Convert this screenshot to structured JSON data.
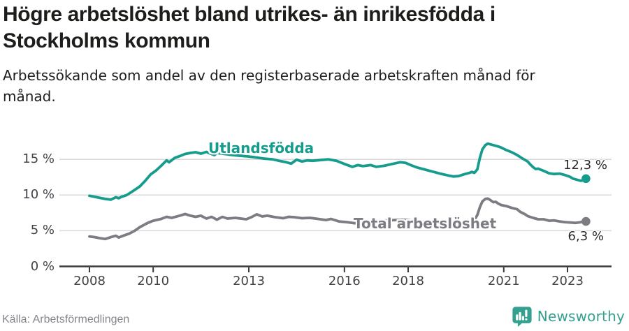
{
  "header": {
    "title_lines": [
      "Högre arbetslöshet bland utrikes- än inrikesfödda i",
      "Stockholms kommun"
    ],
    "subtitle_lines": [
      "Arbetssökande som andel av den registerbaserade arbetskraften månad för",
      "månad."
    ]
  },
  "chart_data": {
    "type": "line",
    "title": "Högre arbetslöshet bland utrikes- än inrikesfödda i Stockholms kommun",
    "subtitle": "Arbetssökande som andel av den registerbaserade arbetskraften månad för månad.",
    "xlabel": "",
    "ylabel": "",
    "unit": "%",
    "grid": true,
    "legend_position": "inline-labels",
    "x_range": [
      2008.0,
      2023.58
    ],
    "ylim": [
      0,
      18
    ],
    "grid_color": "#d9d9d9",
    "axis_color": "#3a3a3a",
    "y_ticks": [
      {
        "value": 0,
        "label": "0 %"
      },
      {
        "value": 5,
        "label": "5 %"
      },
      {
        "value": 10,
        "label": "10 %"
      },
      {
        "value": 15,
        "label": "15 %"
      }
    ],
    "x_ticks": [
      {
        "value": 2008,
        "label": "2008"
      },
      {
        "value": 2010,
        "label": "2010"
      },
      {
        "value": 2013,
        "label": "2013"
      },
      {
        "value": 2016,
        "label": "2016"
      },
      {
        "value": 2018,
        "label": "2018"
      },
      {
        "value": 2021,
        "label": "2021"
      },
      {
        "value": 2023,
        "label": "2023"
      }
    ],
    "series": [
      {
        "name": "Utlandsfödda",
        "color": "#169c8d",
        "end_label": "12,3 %",
        "end_value": 12.3,
        "points": [
          [
            2008.0,
            9.9
          ],
          [
            2008.17,
            9.75
          ],
          [
            2008.33,
            9.6
          ],
          [
            2008.5,
            9.45
          ],
          [
            2008.67,
            9.35
          ],
          [
            2008.83,
            9.7
          ],
          [
            2008.92,
            9.55
          ],
          [
            2009.0,
            9.75
          ],
          [
            2009.17,
            10.0
          ],
          [
            2009.33,
            10.45
          ],
          [
            2009.58,
            11.2
          ],
          [
            2009.75,
            12.0
          ],
          [
            2009.92,
            12.9
          ],
          [
            2010.08,
            13.4
          ],
          [
            2010.25,
            14.1
          ],
          [
            2010.42,
            14.85
          ],
          [
            2010.5,
            14.6
          ],
          [
            2010.67,
            15.2
          ],
          [
            2010.83,
            15.45
          ],
          [
            2011.0,
            15.75
          ],
          [
            2011.17,
            15.9
          ],
          [
            2011.33,
            16.0
          ],
          [
            2011.5,
            15.8
          ],
          [
            2011.67,
            16.05
          ],
          [
            2011.83,
            15.75
          ],
          [
            2011.92,
            15.6
          ],
          [
            2012.0,
            15.9
          ],
          [
            2012.25,
            15.75
          ],
          [
            2012.5,
            15.6
          ],
          [
            2012.75,
            15.5
          ],
          [
            2013.0,
            15.4
          ],
          [
            2013.25,
            15.25
          ],
          [
            2013.5,
            15.1
          ],
          [
            2013.75,
            15.0
          ],
          [
            2014.0,
            14.75
          ],
          [
            2014.17,
            14.6
          ],
          [
            2014.33,
            14.4
          ],
          [
            2014.5,
            14.95
          ],
          [
            2014.67,
            14.7
          ],
          [
            2014.83,
            14.85
          ],
          [
            2015.0,
            14.8
          ],
          [
            2015.25,
            14.9
          ],
          [
            2015.5,
            15.0
          ],
          [
            2015.75,
            14.8
          ],
          [
            2016.0,
            14.35
          ],
          [
            2016.25,
            13.95
          ],
          [
            2016.42,
            14.2
          ],
          [
            2016.58,
            14.05
          ],
          [
            2016.83,
            14.2
          ],
          [
            2017.0,
            13.95
          ],
          [
            2017.25,
            14.1
          ],
          [
            2017.5,
            14.35
          ],
          [
            2017.75,
            14.6
          ],
          [
            2017.92,
            14.5
          ],
          [
            2018.08,
            14.2
          ],
          [
            2018.25,
            13.9
          ],
          [
            2018.5,
            13.6
          ],
          [
            2018.75,
            13.3
          ],
          [
            2019.0,
            13.0
          ],
          [
            2019.25,
            12.75
          ],
          [
            2019.42,
            12.6
          ],
          [
            2019.58,
            12.65
          ],
          [
            2019.75,
            12.9
          ],
          [
            2019.92,
            13.1
          ],
          [
            2020.0,
            13.25
          ],
          [
            2020.08,
            13.1
          ],
          [
            2020.17,
            13.6
          ],
          [
            2020.25,
            15.2
          ],
          [
            2020.33,
            16.4
          ],
          [
            2020.42,
            17.0
          ],
          [
            2020.5,
            17.2
          ],
          [
            2020.58,
            17.1
          ],
          [
            2020.67,
            17.0
          ],
          [
            2020.75,
            16.9
          ],
          [
            2020.83,
            16.8
          ],
          [
            2020.92,
            16.65
          ],
          [
            2021.08,
            16.3
          ],
          [
            2021.25,
            16.0
          ],
          [
            2021.42,
            15.6
          ],
          [
            2021.58,
            15.15
          ],
          [
            2021.75,
            14.7
          ],
          [
            2021.83,
            14.3
          ],
          [
            2021.92,
            13.9
          ],
          [
            2022.0,
            13.65
          ],
          [
            2022.08,
            13.7
          ],
          [
            2022.25,
            13.4
          ],
          [
            2022.42,
            13.05
          ],
          [
            2022.58,
            12.95
          ],
          [
            2022.75,
            13.0
          ],
          [
            2022.92,
            12.8
          ],
          [
            2023.08,
            12.55
          ],
          [
            2023.17,
            12.3
          ],
          [
            2023.33,
            12.1
          ],
          [
            2023.42,
            12.0
          ],
          [
            2023.5,
            12.1
          ],
          [
            2023.58,
            12.3
          ]
        ]
      },
      {
        "name": "Total arbetslöshet",
        "color": "#7c7c82",
        "end_label": "6,3 %",
        "end_value": 6.3,
        "points": [
          [
            2008.0,
            4.2
          ],
          [
            2008.17,
            4.1
          ],
          [
            2008.33,
            3.95
          ],
          [
            2008.5,
            3.85
          ],
          [
            2008.67,
            4.1
          ],
          [
            2008.83,
            4.3
          ],
          [
            2008.92,
            4.05
          ],
          [
            2009.0,
            4.2
          ],
          [
            2009.25,
            4.6
          ],
          [
            2009.42,
            5.0
          ],
          [
            2009.58,
            5.5
          ],
          [
            2009.83,
            6.1
          ],
          [
            2010.0,
            6.4
          ],
          [
            2010.25,
            6.65
          ],
          [
            2010.42,
            6.95
          ],
          [
            2010.58,
            6.8
          ],
          [
            2010.83,
            7.1
          ],
          [
            2011.0,
            7.35
          ],
          [
            2011.17,
            7.1
          ],
          [
            2011.33,
            6.95
          ],
          [
            2011.5,
            7.1
          ],
          [
            2011.67,
            6.7
          ],
          [
            2011.83,
            6.95
          ],
          [
            2012.0,
            6.55
          ],
          [
            2012.17,
            6.95
          ],
          [
            2012.33,
            6.7
          ],
          [
            2012.58,
            6.8
          ],
          [
            2012.75,
            6.7
          ],
          [
            2012.92,
            6.6
          ],
          [
            2013.08,
            6.9
          ],
          [
            2013.25,
            7.3
          ],
          [
            2013.42,
            7.0
          ],
          [
            2013.58,
            7.1
          ],
          [
            2013.83,
            6.9
          ],
          [
            2014.08,
            6.75
          ],
          [
            2014.25,
            6.95
          ],
          [
            2014.42,
            6.9
          ],
          [
            2014.67,
            6.75
          ],
          [
            2014.92,
            6.8
          ],
          [
            2015.17,
            6.65
          ],
          [
            2015.42,
            6.5
          ],
          [
            2015.58,
            6.65
          ],
          [
            2015.83,
            6.3
          ],
          [
            2016.08,
            6.2
          ],
          [
            2016.33,
            6.05
          ],
          [
            2016.58,
            6.15
          ],
          [
            2016.83,
            6.3
          ],
          [
            2017.08,
            6.4
          ],
          [
            2017.33,
            6.45
          ],
          [
            2017.58,
            6.5
          ],
          [
            2017.83,
            6.55
          ],
          [
            2018.08,
            6.45
          ],
          [
            2018.33,
            6.35
          ],
          [
            2018.58,
            6.25
          ],
          [
            2018.83,
            6.15
          ],
          [
            2019.08,
            6.05
          ],
          [
            2019.33,
            6.0
          ],
          [
            2019.58,
            6.0
          ],
          [
            2019.83,
            6.1
          ],
          [
            2020.0,
            6.25
          ],
          [
            2020.08,
            6.5
          ],
          [
            2020.17,
            7.2
          ],
          [
            2020.25,
            8.3
          ],
          [
            2020.33,
            9.1
          ],
          [
            2020.42,
            9.45
          ],
          [
            2020.5,
            9.5
          ],
          [
            2020.58,
            9.3
          ],
          [
            2020.67,
            9.0
          ],
          [
            2020.75,
            9.05
          ],
          [
            2020.83,
            8.8
          ],
          [
            2020.92,
            8.6
          ],
          [
            2021.08,
            8.45
          ],
          [
            2021.25,
            8.2
          ],
          [
            2021.42,
            8.0
          ],
          [
            2021.5,
            7.7
          ],
          [
            2021.58,
            7.5
          ],
          [
            2021.67,
            7.3
          ],
          [
            2021.75,
            7.05
          ],
          [
            2021.92,
            6.8
          ],
          [
            2022.08,
            6.6
          ],
          [
            2022.25,
            6.6
          ],
          [
            2022.42,
            6.4
          ],
          [
            2022.58,
            6.45
          ],
          [
            2022.75,
            6.3
          ],
          [
            2022.92,
            6.2
          ],
          [
            2023.08,
            6.15
          ],
          [
            2023.25,
            6.1
          ],
          [
            2023.42,
            6.2
          ],
          [
            2023.5,
            6.35
          ],
          [
            2023.58,
            6.3
          ]
        ]
      }
    ]
  },
  "footer": {
    "source": "Källa: Arbetsförmedlingen",
    "logo_text": "Newsworthy",
    "logo_color": "#35a08f"
  }
}
